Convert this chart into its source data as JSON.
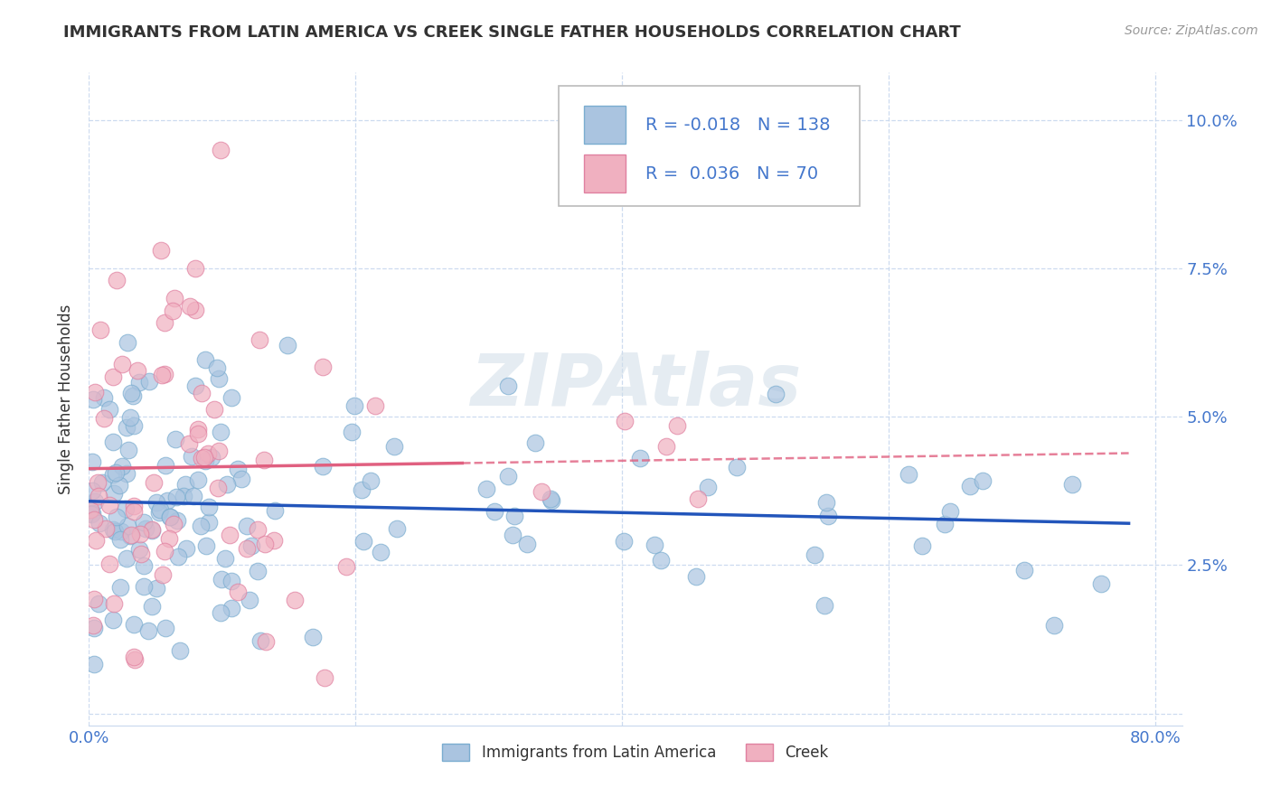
{
  "title": "IMMIGRANTS FROM LATIN AMERICA VS CREEK SINGLE FATHER HOUSEHOLDS CORRELATION CHART",
  "source": "Source: ZipAtlas.com",
  "ylabel": "Single Father Households",
  "xlim": [
    0.0,
    0.82
  ],
  "ylim": [
    -0.002,
    0.108
  ],
  "xticks": [
    0.0,
    0.2,
    0.4,
    0.6,
    0.8
  ],
  "xticklabels": [
    "0.0%",
    "",
    "",
    "",
    "80.0%"
  ],
  "yticks": [
    0.0,
    0.025,
    0.05,
    0.075,
    0.1
  ],
  "yticklabels_right": [
    "",
    "2.5%",
    "5.0%",
    "7.5%",
    "10.0%"
  ],
  "blue_color": "#aac4e0",
  "blue_edge": "#7aadd0",
  "pink_color": "#f0b0c0",
  "pink_edge": "#e080a0",
  "blue_line_color": "#2255bb",
  "pink_line_color": "#e06080",
  "legend_blue_label": "Immigrants from Latin America",
  "legend_pink_label": "Creek",
  "R_blue": -0.018,
  "N_blue": 138,
  "R_pink": 0.036,
  "N_pink": 70,
  "watermark": "ZIPAtlas",
  "background_color": "#ffffff",
  "grid_color": "#c8d8ee",
  "title_color": "#333333",
  "tick_color": "#4477cc",
  "source_color": "#999999"
}
